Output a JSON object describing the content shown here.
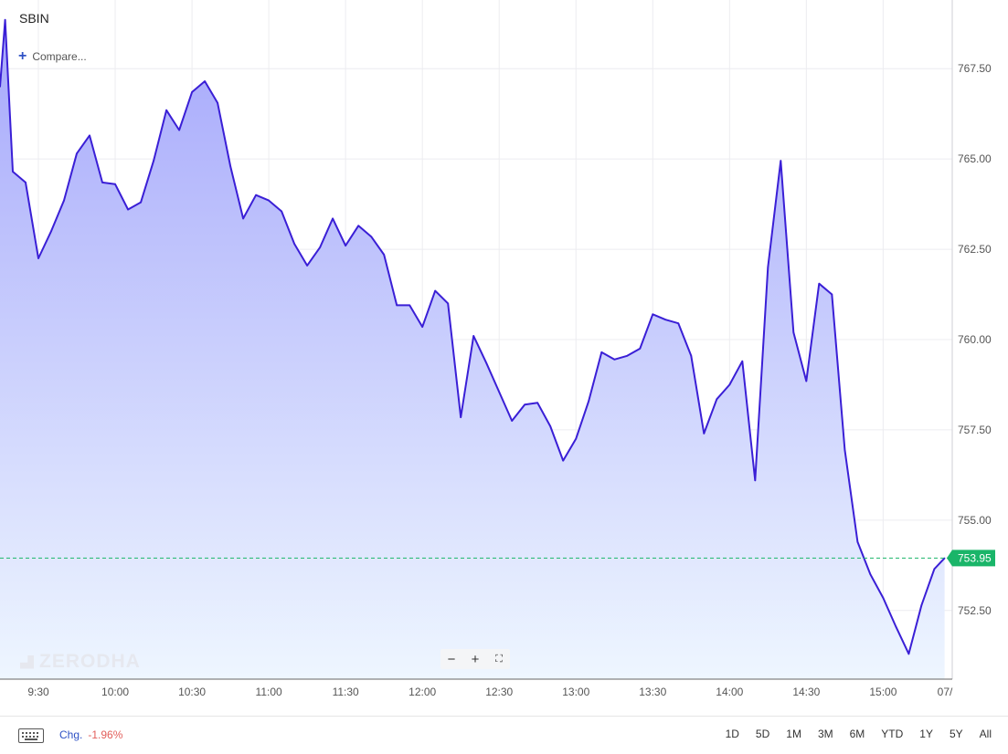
{
  "symbol": "SBIN",
  "compare_label": "Compare...",
  "watermark": "ZERODHA",
  "zoom_controls": {
    "minus": "−",
    "plus": "+",
    "fullscreen": "⛶"
  },
  "footer": {
    "chg_label": "Chg.",
    "chg_value": "-1.96%",
    "ranges": [
      "1D",
      "5D",
      "1M",
      "3M",
      "6M",
      "YTD",
      "1Y",
      "5Y",
      "All"
    ]
  },
  "colors": {
    "line": "#3a1fd6",
    "fill_top": "#a6a8fb",
    "fill_bottom": "#eef6ff",
    "last_price_bg": "#1ab569",
    "grid": "#ececf0",
    "axis_text": "#555555"
  },
  "chart_data": {
    "type": "area",
    "symbol": "SBIN",
    "x_labels": [
      "9:30",
      "10:00",
      "10:30",
      "11:00",
      "11:30",
      "12:00",
      "12:30",
      "13:00",
      "13:30",
      "14:00",
      "14:30",
      "15:00",
      "07/"
    ],
    "x_range": [
      "9:15",
      "15:27"
    ],
    "y_ticks": [
      "752.50",
      "755.00",
      "757.50",
      "760.00",
      "762.50",
      "765.00",
      "767.50"
    ],
    "ylim": [
      750.6,
      769.4
    ],
    "last_price": "753.95",
    "last_price_value": 753.95,
    "grid": true,
    "series": [
      {
        "points": [
          [
            "9:15",
            767.0
          ],
          [
            "9:17",
            768.85
          ],
          [
            "9:20",
            764.65
          ],
          [
            "9:25",
            764.35
          ],
          [
            "9:30",
            762.25
          ],
          [
            "9:35",
            763.0
          ],
          [
            "9:40",
            763.85
          ],
          [
            "9:45",
            765.15
          ],
          [
            "9:50",
            765.65
          ],
          [
            "9:55",
            764.35
          ],
          [
            "10:00",
            764.3
          ],
          [
            "10:05",
            763.6
          ],
          [
            "10:10",
            763.8
          ],
          [
            "10:15",
            764.95
          ],
          [
            "10:20",
            766.35
          ],
          [
            "10:25",
            765.8
          ],
          [
            "10:30",
            766.85
          ],
          [
            "10:35",
            767.15
          ],
          [
            "10:40",
            766.55
          ],
          [
            "10:45",
            764.8
          ],
          [
            "10:50",
            763.35
          ],
          [
            "10:55",
            764.0
          ],
          [
            "11:00",
            763.85
          ],
          [
            "11:05",
            763.55
          ],
          [
            "11:10",
            762.65
          ],
          [
            "11:15",
            762.05
          ],
          [
            "11:20",
            762.55
          ],
          [
            "11:25",
            763.35
          ],
          [
            "11:30",
            762.6
          ],
          [
            "11:35",
            763.15
          ],
          [
            "11:40",
            762.85
          ],
          [
            "11:45",
            762.35
          ],
          [
            "11:50",
            760.95
          ],
          [
            "11:55",
            760.95
          ],
          [
            "12:00",
            760.35
          ],
          [
            "12:05",
            761.35
          ],
          [
            "12:10",
            761.0
          ],
          [
            "12:15",
            757.85
          ],
          [
            "12:20",
            760.1
          ],
          [
            "12:25",
            759.35
          ],
          [
            "12:30",
            758.55
          ],
          [
            "12:35",
            757.75
          ],
          [
            "12:40",
            758.2
          ],
          [
            "12:45",
            758.25
          ],
          [
            "12:50",
            757.6
          ],
          [
            "12:55",
            756.65
          ],
          [
            "13:00",
            757.25
          ],
          [
            "13:05",
            758.3
          ],
          [
            "13:10",
            759.65
          ],
          [
            "13:15",
            759.45
          ],
          [
            "13:20",
            759.55
          ],
          [
            "13:25",
            759.75
          ],
          [
            "13:30",
            760.7
          ],
          [
            "13:35",
            760.55
          ],
          [
            "13:40",
            760.45
          ],
          [
            "13:45",
            759.55
          ],
          [
            "13:50",
            757.4
          ],
          [
            "13:55",
            758.35
          ],
          [
            "14:00",
            758.75
          ],
          [
            "14:05",
            759.4
          ],
          [
            "14:10",
            756.1
          ],
          [
            "14:15",
            762.0
          ],
          [
            "14:20",
            764.95
          ],
          [
            "14:25",
            760.2
          ],
          [
            "14:30",
            758.85
          ],
          [
            "14:35",
            761.55
          ],
          [
            "14:40",
            761.25
          ],
          [
            "14:45",
            756.95
          ],
          [
            "14:50",
            754.4
          ],
          [
            "14:55",
            753.5
          ],
          [
            "15:00",
            752.85
          ],
          [
            "15:05",
            752.05
          ],
          [
            "15:10",
            751.3
          ],
          [
            "15:15",
            752.65
          ],
          [
            "15:20",
            753.65
          ],
          [
            "15:24",
            753.95
          ]
        ]
      }
    ]
  }
}
